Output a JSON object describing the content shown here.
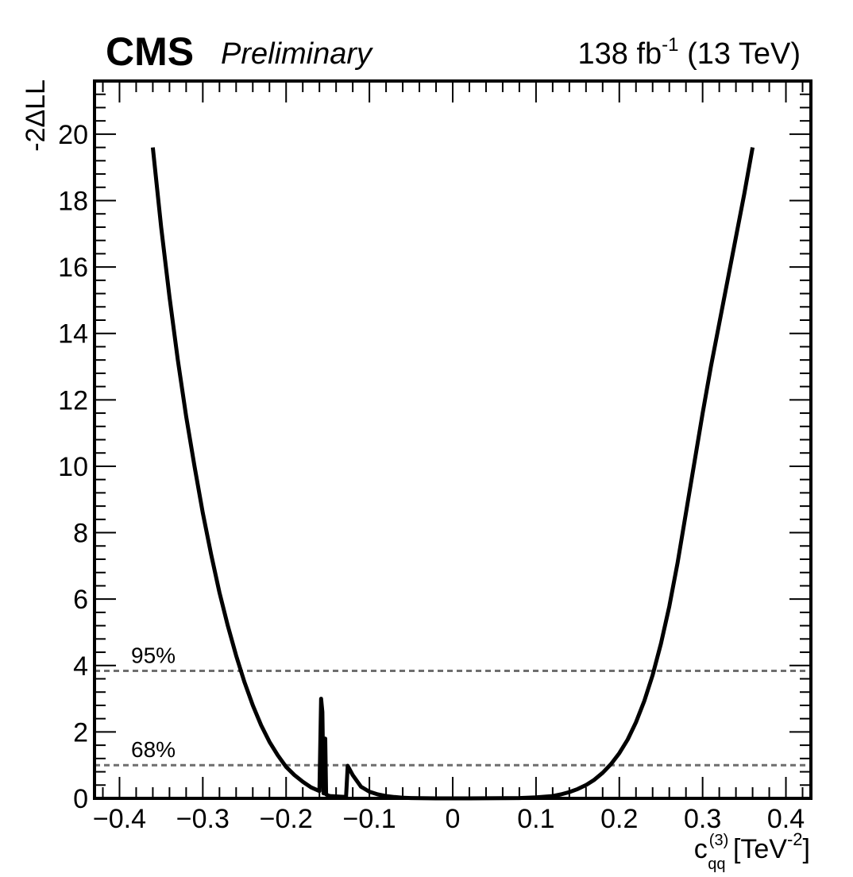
{
  "header": {
    "experiment": "CMS",
    "status": "Preliminary",
    "lumi_value": "138 fb",
    "lumi_exp": "-1",
    "energy": " (13 TeV)"
  },
  "chart_data": {
    "type": "line",
    "xlabel": {
      "symbol": "c",
      "superscript": "(3)",
      "subscript": "qq",
      "unit_open": " [TeV",
      "unit_exp": "-2",
      "unit_close": "]"
    },
    "ylabel": "-2ΔLL",
    "xlim": [
      -0.43,
      0.43
    ],
    "ylim": [
      0,
      21.6
    ],
    "x_ticks": [
      -0.4,
      -0.3,
      -0.2,
      -0.1,
      0,
      0.1,
      0.2,
      0.3,
      0.4
    ],
    "x_tick_labels": [
      "−0.4",
      "−0.3",
      "−0.2",
      "−0.1",
      "0",
      "0.1",
      "0.2",
      "0.3",
      "0.4"
    ],
    "y_ticks": [
      0,
      2,
      4,
      6,
      8,
      10,
      12,
      14,
      16,
      18,
      20
    ],
    "y_tick_labels": [
      "0",
      "2",
      "4",
      "6",
      "8",
      "10",
      "12",
      "14",
      "16",
      "18",
      "20"
    ],
    "thresholds": [
      {
        "label": "95%",
        "value": 3.84
      },
      {
        "label": "68%",
        "value": 1.0
      }
    ],
    "series": [
      {
        "color": "#000000",
        "x": [
          -0.36,
          -0.35,
          -0.34,
          -0.33,
          -0.32,
          -0.31,
          -0.3,
          -0.29,
          -0.28,
          -0.27,
          -0.26,
          -0.25,
          -0.24,
          -0.23,
          -0.22,
          -0.21,
          -0.2,
          -0.19,
          -0.18,
          -0.17,
          -0.16,
          -0.158,
          -0.1565,
          -0.155,
          -0.153,
          -0.152,
          -0.1505,
          -0.149,
          -0.147,
          -0.135,
          -0.128,
          -0.126,
          -0.12,
          -0.11,
          -0.1,
          -0.09,
          -0.08,
          -0.07,
          -0.06,
          -0.05,
          -0.04,
          -0.03,
          -0.02,
          0,
          0.02,
          0.04,
          0.06,
          0.08,
          0.1,
          0.12,
          0.13,
          0.14,
          0.15,
          0.16,
          0.17,
          0.18,
          0.19,
          0.2,
          0.21,
          0.22,
          0.23,
          0.24,
          0.25,
          0.26,
          0.27,
          0.28,
          0.29,
          0.3,
          0.31,
          0.32,
          0.33,
          0.34,
          0.35,
          0.36
        ],
        "y": [
          19.6,
          17.2,
          15.1,
          13.2,
          11.5,
          10.0,
          8.6,
          7.35,
          6.2,
          5.2,
          4.3,
          3.5,
          2.8,
          2.2,
          1.7,
          1.3,
          0.95,
          0.7,
          0.5,
          0.33,
          0.22,
          3.0,
          2.6,
          0.15,
          1.8,
          0.12,
          0.1,
          0.08,
          0.07,
          0.05,
          0.04,
          0.98,
          0.7,
          0.35,
          0.2,
          0.12,
          0.07,
          0.04,
          0.02,
          0.01,
          0.005,
          0.002,
          0.0,
          0.0,
          0.0,
          0.002,
          0.005,
          0.01,
          0.03,
          0.07,
          0.12,
          0.19,
          0.28,
          0.4,
          0.56,
          0.77,
          1.03,
          1.36,
          1.77,
          2.29,
          2.93,
          3.71,
          4.66,
          5.78,
          7.1,
          8.6,
          10.1,
          11.6,
          13.0,
          14.3,
          15.6,
          16.9,
          18.2,
          19.6
        ]
      }
    ],
    "grid": false
  }
}
